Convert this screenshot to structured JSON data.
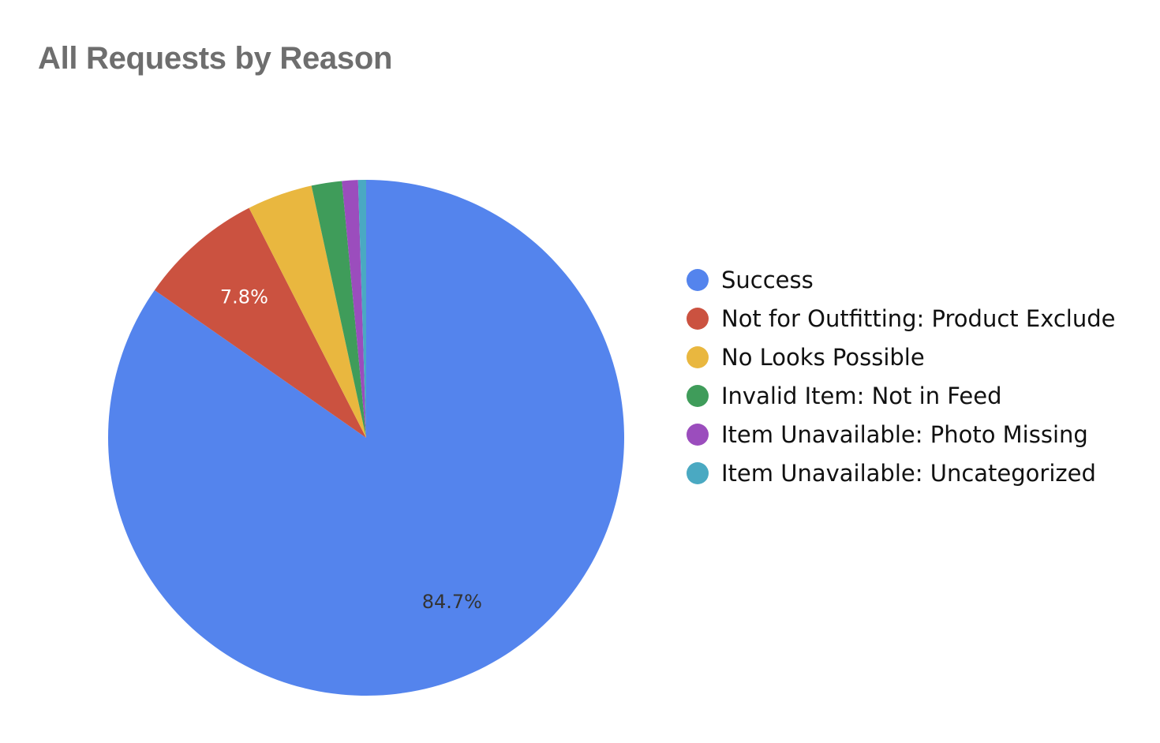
{
  "chart_data": {
    "type": "pie",
    "title": "All Requests by Reason",
    "start_angle_deg": 0,
    "direction": "clockwise",
    "legend_position": "right",
    "slices": [
      {
        "label": "Success",
        "value": 84.7,
        "color": "#5484ed",
        "data_label": "84.7%",
        "label_color": "#333333"
      },
      {
        "label": "Not for Outfitting: Product Exclude",
        "value": 7.8,
        "color": "#cb5240",
        "data_label": "7.8%",
        "label_color": "#ffffff"
      },
      {
        "label": "No Looks Possible",
        "value": 4.1,
        "color": "#e9b73f",
        "data_label": "",
        "label_color": "#333333"
      },
      {
        "label": "Invalid Item: Not in Feed",
        "value": 1.9,
        "color": "#3f9c5a",
        "data_label": "",
        "label_color": "#333333"
      },
      {
        "label": "Item Unavailable: Photo Missing",
        "value": 1.0,
        "color": "#9b4dbd",
        "data_label": "",
        "label_color": "#333333"
      },
      {
        "label": "Item Unavailable: Uncategorized",
        "value": 0.5,
        "color": "#4aa9c2",
        "data_label": "",
        "label_color": "#333333"
      }
    ]
  }
}
